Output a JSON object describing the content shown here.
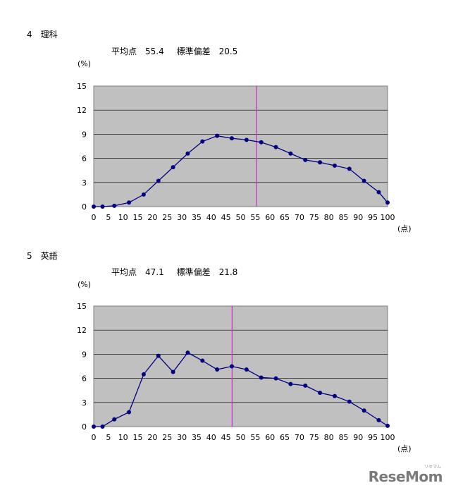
{
  "charts": [
    {
      "section_title": "4　理科",
      "mean_text": "平均点　55.4",
      "sd_text": "標準偏差　20.5",
      "ylabel": "(%)",
      "xunit": "(点)"
    },
    {
      "section_title": "5　英語",
      "mean_text": "平均点　47.1",
      "sd_text": "標準偏差　21.8",
      "ylabel": "(%)",
      "xunit": "(点)"
    }
  ],
  "chart_data": [
    {
      "type": "line",
      "xlim": [
        0,
        100
      ],
      "ylim": [
        0,
        15
      ],
      "xticks": [
        0,
        5,
        10,
        15,
        20,
        25,
        30,
        35,
        40,
        45,
        50,
        55,
        60,
        65,
        70,
        75,
        80,
        85,
        90,
        95,
        100
      ],
      "yticks": [
        0,
        3,
        6,
        9,
        12,
        15
      ],
      "grid": true,
      "x": [
        0,
        3,
        7,
        12,
        17,
        22,
        27,
        32,
        37,
        42,
        47,
        52,
        57,
        62,
        67,
        72,
        77,
        82,
        87,
        92,
        97,
        100
      ],
      "values": [
        0,
        0,
        0.1,
        0.5,
        1.5,
        3.2,
        4.9,
        6.6,
        8.1,
        8.8,
        8.5,
        8.3,
        8.0,
        7.4,
        6.6,
        5.8,
        5.5,
        5.1,
        4.7,
        3.2,
        1.8,
        0.5
      ],
      "mean_line_x": 55.4,
      "colors": {
        "line": "#000080",
        "mean_line": "#cc33cc",
        "plot_bg": "#c0c0c0"
      }
    },
    {
      "type": "line",
      "xlim": [
        0,
        100
      ],
      "ylim": [
        0,
        15
      ],
      "xticks": [
        0,
        5,
        10,
        15,
        20,
        25,
        30,
        35,
        40,
        45,
        50,
        55,
        60,
        65,
        70,
        75,
        80,
        85,
        90,
        95,
        100
      ],
      "yticks": [
        0,
        3,
        6,
        9,
        12,
        15
      ],
      "grid": true,
      "x": [
        0,
        3,
        7,
        12,
        17,
        22,
        27,
        32,
        37,
        42,
        47,
        52,
        57,
        62,
        67,
        72,
        77,
        82,
        87,
        92,
        97,
        100
      ],
      "values": [
        0,
        0,
        0.9,
        1.8,
        6.5,
        8.8,
        6.8,
        9.2,
        8.2,
        7.1,
        7.5,
        7.1,
        6.1,
        6.0,
        5.3,
        5.1,
        4.2,
        3.8,
        3.1,
        2.0,
        0.8,
        0.1
      ],
      "mean_line_x": 47.1,
      "colors": {
        "line": "#000080",
        "mean_line": "#cc33cc",
        "plot_bg": "#c0c0c0"
      }
    }
  ],
  "logo": {
    "text": "ReseMom",
    "sub": "リセマム"
  }
}
